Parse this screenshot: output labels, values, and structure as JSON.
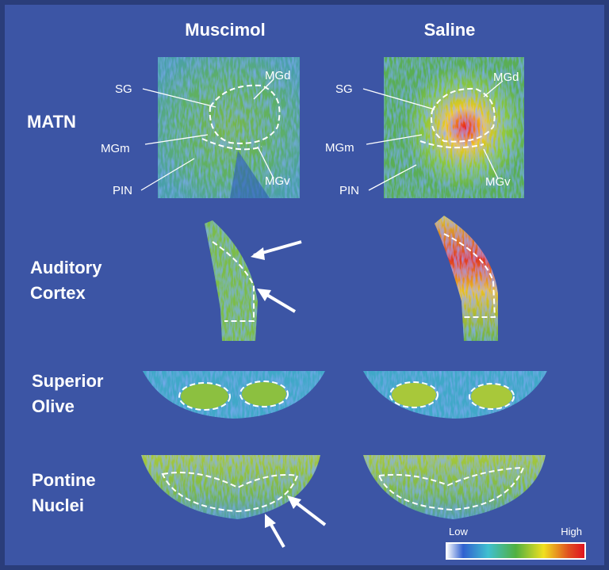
{
  "columns": [
    "Muscimol",
    "Saline"
  ],
  "rows": [
    [
      "MATN"
    ],
    [
      "Auditory",
      "Cortex"
    ],
    [
      "Superior",
      "Olive"
    ],
    [
      "Pontine",
      "Nuclei"
    ]
  ],
  "muscimol_labels": [
    "SG",
    "MGd",
    "MGm",
    "MGv",
    "PIN"
  ],
  "saline_labels": [
    "SG",
    "MGd",
    "MGm",
    "MGv",
    "PIN"
  ],
  "colorbar": {
    "low": "Low",
    "high": "High"
  }
}
